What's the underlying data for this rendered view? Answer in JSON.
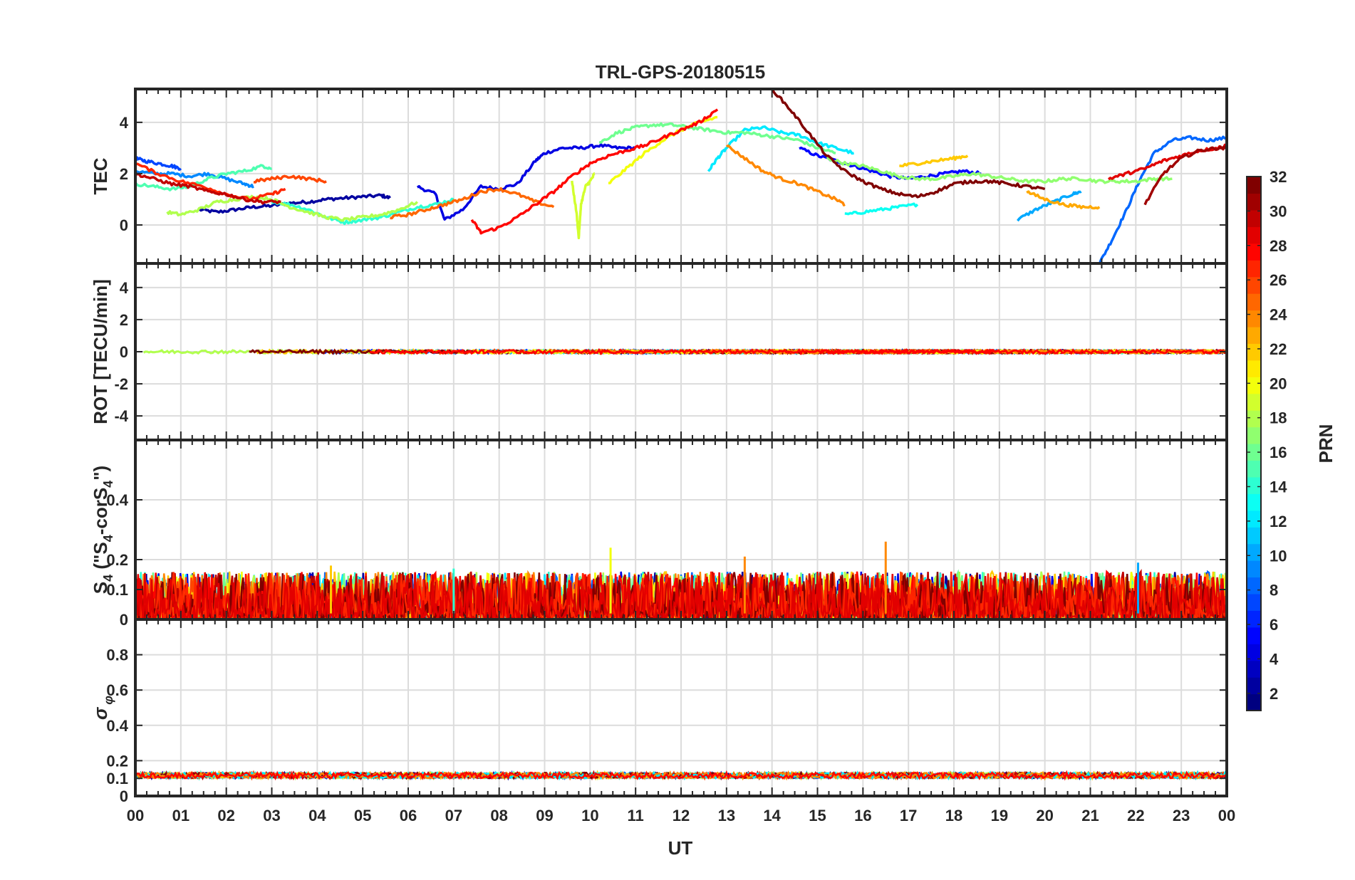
{
  "chart_data": {
    "type": "line",
    "title": "TRL-GPS-20180515",
    "xlabel": "UT",
    "x_tick_labels": [
      "00",
      "01",
      "02",
      "03",
      "04",
      "05",
      "06",
      "07",
      "08",
      "09",
      "10",
      "11",
      "12",
      "13",
      "14",
      "15",
      "16",
      "17",
      "18",
      "19",
      "20",
      "21",
      "22",
      "23",
      "00"
    ],
    "xlim": [
      0,
      24
    ],
    "grid": true,
    "colorbar": {
      "label": "PRN",
      "range": [
        1,
        32
      ],
      "tick_values": [
        2,
        4,
        6,
        8,
        10,
        12,
        14,
        16,
        18,
        20,
        22,
        24,
        26,
        28,
        30,
        32
      ],
      "tick_labels": [
        "2",
        "4",
        "6",
        "8",
        "10",
        "12",
        "14",
        "16",
        "18",
        "20",
        "22",
        "24",
        "26",
        "28",
        "30",
        "32"
      ],
      "colormap": "jet"
    },
    "panels": [
      {
        "id": "tec",
        "ylabel": "TEC",
        "ylim": [
          -1.5,
          5.3
        ],
        "y_ticks": [
          0,
          2,
          4
        ],
        "y_tick_labels": [
          "0",
          "2",
          "4"
        ],
        "series": [
          {
            "prn": 2,
            "x": [
              1.4,
              1.8,
              2.2,
              2.6,
              3.0,
              3.4,
              3.8,
              4.2,
              4.6,
              5.0,
              5.4,
              5.6
            ],
            "y": [
              0.6,
              0.5,
              0.6,
              0.7,
              0.75,
              0.85,
              0.9,
              1.0,
              1.05,
              1.1,
              1.15,
              1.05
            ]
          },
          {
            "prn": 4,
            "x": [
              6.2,
              6.6,
              6.8,
              7.2,
              7.6,
              8.0,
              8.4,
              8.8,
              9.0,
              9.4,
              9.8,
              10.2,
              10.6,
              11.0
            ],
            "y": [
              1.5,
              1.2,
              0.2,
              0.6,
              1.5,
              1.4,
              1.6,
              2.5,
              2.8,
              3.0,
              3.0,
              3.1,
              3.0,
              3.0
            ]
          },
          {
            "prn": 5,
            "x": [
              14.6,
              15.0,
              15.4,
              15.8,
              16.2,
              16.6,
              17.0,
              17.4,
              17.8,
              18.2,
              18.6
            ],
            "y": [
              3.0,
              2.7,
              2.5,
              2.3,
              2.1,
              1.9,
              1.8,
              1.9,
              2.0,
              2.1,
              2.0
            ]
          },
          {
            "prn": 7,
            "x": [
              0.0,
              0.2,
              0.5,
              0.8,
              1.0
            ],
            "y": [
              2.6,
              2.5,
              2.4,
              2.3,
              2.2
            ]
          },
          {
            "prn": 8,
            "x": [
              21.2,
              21.5,
              21.8,
              22.1,
              22.4,
              22.8,
              23.2,
              23.6,
              24.0
            ],
            "y": [
              -1.5,
              -0.5,
              0.6,
              1.8,
              2.8,
              3.3,
              3.4,
              3.3,
              3.4
            ]
          },
          {
            "prn": 9,
            "x": [
              0.0,
              0.4,
              0.8,
              1.2,
              1.6,
              2.0,
              2.4,
              2.6
            ],
            "y": [
              2.1,
              2.0,
              2.0,
              1.9,
              2.0,
              1.8,
              1.6,
              1.5
            ]
          },
          {
            "prn": 10,
            "x": [
              19.4,
              19.8,
              20.2,
              20.6,
              20.8
            ],
            "y": [
              0.2,
              0.6,
              0.9,
              1.2,
              1.3
            ]
          },
          {
            "prn": 12,
            "x": [
              12.6,
              12.8,
              13.0,
              13.4,
              13.8,
              14.2,
              14.6,
              15.0,
              15.4,
              15.8
            ],
            "y": [
              2.1,
              2.6,
              3.0,
              3.7,
              3.8,
              3.6,
              3.5,
              3.2,
              3.0,
              2.8
            ]
          },
          {
            "prn": 13,
            "x": [
              15.6,
              16.0,
              16.4,
              16.8,
              17.2
            ],
            "y": [
              0.4,
              0.5,
              0.6,
              0.7,
              0.8
            ]
          },
          {
            "prn": 14,
            "x": [
              3.0,
              3.4,
              3.8,
              4.2,
              4.6,
              5.0,
              5.4,
              5.8,
              6.2,
              6.6,
              7.0
            ],
            "y": [
              0.9,
              0.8,
              0.6,
              0.3,
              0.1,
              0.2,
              0.3,
              0.5,
              0.7,
              0.8,
              1.0
            ]
          },
          {
            "prn": 15,
            "x": [
              0.0,
              0.4,
              0.8,
              1.2,
              1.6,
              2.0,
              2.4,
              2.8,
              3.0
            ],
            "y": [
              1.6,
              1.5,
              1.4,
              1.5,
              1.8,
              2.0,
              2.1,
              2.3,
              2.2
            ]
          },
          {
            "prn": 16,
            "x": [
              10.2,
              10.6,
              11.0,
              11.4,
              11.8,
              12.2,
              12.6,
              13.0,
              13.4,
              13.8,
              14.2,
              14.6,
              15.0,
              15.4
            ],
            "y": [
              3.2,
              3.6,
              3.8,
              3.9,
              3.9,
              3.8,
              3.7,
              3.6,
              3.6,
              3.5,
              3.4,
              3.3,
              3.0,
              2.8
            ]
          },
          {
            "prn": 17,
            "x": [
              15.2,
              15.6,
              16.0,
              16.4,
              16.8,
              17.2,
              17.6,
              18.0,
              18.4,
              18.8,
              19.2,
              19.6,
              20.0,
              20.4,
              20.8,
              21.2,
              21.6,
              22.0,
              22.4,
              22.8
            ],
            "y": [
              2.6,
              2.4,
              2.3,
              2.1,
              1.9,
              1.8,
              1.8,
              1.9,
              2.0,
              1.9,
              1.8,
              1.7,
              1.7,
              1.8,
              1.8,
              1.7,
              1.7,
              1.7,
              1.8,
              1.8
            ]
          },
          {
            "prn": 18,
            "x": [
              0.7,
              1.0,
              1.4,
              1.8,
              2.2,
              2.6,
              3.0,
              3.4,
              3.8,
              4.2,
              4.6,
              5.0,
              5.4,
              5.8,
              6.2
            ],
            "y": [
              0.5,
              0.4,
              0.6,
              0.9,
              1.0,
              1.1,
              1.0,
              0.7,
              0.5,
              0.3,
              0.2,
              0.3,
              0.4,
              0.6,
              0.9
            ]
          },
          {
            "prn": 19,
            "x": [
              9.6,
              9.7,
              9.75,
              9.8,
              9.9,
              10.0,
              10.1
            ],
            "y": [
              1.7,
              0.5,
              -0.5,
              0.8,
              1.5,
              1.7,
              2.0
            ]
          },
          {
            "prn": 20,
            "x": [
              10.4,
              10.8,
              11.2,
              11.6,
              12.0,
              12.4,
              12.8
            ],
            "y": [
              1.6,
              2.2,
              2.8,
              3.3,
              3.7,
              4.0,
              4.2
            ]
          },
          {
            "prn": 22,
            "x": [
              16.8,
              17.2,
              17.6,
              18.0,
              18.3
            ],
            "y": [
              2.3,
              2.4,
              2.5,
              2.6,
              2.7
            ]
          },
          {
            "prn": 23,
            "x": [
              19.6,
              20.0,
              20.4,
              20.8,
              21.2
            ],
            "y": [
              1.3,
              1.0,
              0.8,
              0.7,
              0.7
            ]
          },
          {
            "prn": 24,
            "x": [
              13.0,
              13.4,
              13.8,
              14.2,
              14.6,
              15.0,
              15.4,
              15.6
            ],
            "y": [
              3.1,
              2.6,
              2.1,
              1.8,
              1.6,
              1.3,
              1.0,
              0.8
            ]
          },
          {
            "prn": 25,
            "x": [
              5.6,
              6.0,
              6.4,
              6.8,
              7.2,
              7.6,
              8.0,
              8.4,
              8.8,
              9.2
            ],
            "y": [
              0.3,
              0.4,
              0.6,
              0.8,
              1.0,
              1.3,
              1.4,
              1.2,
              0.9,
              0.7
            ]
          },
          {
            "prn": 26,
            "x": [
              2.6,
              3.0,
              3.4,
              3.8,
              4.2
            ],
            "y": [
              1.7,
              1.8,
              1.9,
              1.8,
              1.7
            ]
          },
          {
            "prn": 27,
            "x": [
              0.0,
              0.5,
              1.0,
              1.5,
              2.0,
              2.5,
              3.0,
              3.3
            ],
            "y": [
              2.4,
              2.0,
              1.7,
              1.5,
              1.2,
              1.0,
              1.2,
              1.4
            ]
          },
          {
            "prn": 28,
            "x": [
              7.4,
              7.6,
              8.0,
              8.4,
              8.8,
              9.2,
              9.6,
              10.0,
              10.4,
              10.8,
              11.2,
              11.6,
              12.0,
              12.4,
              12.8
            ],
            "y": [
              0.2,
              -0.3,
              -0.1,
              0.3,
              0.8,
              1.3,
              1.9,
              2.4,
              2.7,
              2.9,
              3.1,
              3.4,
              3.7,
              4.0,
              4.5
            ]
          },
          {
            "prn": 29,
            "x": [
              21.4,
              21.8,
              22.2,
              22.6,
              23.0,
              23.4,
              23.8,
              24.0
            ],
            "y": [
              1.8,
              2.0,
              2.2,
              2.5,
              2.7,
              2.9,
              3.0,
              3.1
            ]
          },
          {
            "prn": 30,
            "x": [
              0.0,
              0.4,
              0.8,
              1.2,
              1.6,
              2.0,
              2.4,
              2.8,
              3.2
            ],
            "y": [
              2.0,
              1.8,
              1.6,
              1.5,
              1.3,
              1.2,
              1.0,
              0.9,
              0.9
            ]
          },
          {
            "prn": 31,
            "x": [
              22.2,
              22.6,
              23.0,
              23.4,
              23.8,
              24.0
            ],
            "y": [
              0.8,
              2.0,
              2.6,
              2.9,
              3.0,
              3.0
            ]
          },
          {
            "prn": 32,
            "x": [
              14.0,
              14.4,
              14.8,
              15.2,
              15.6,
              16.0,
              16.4,
              16.8,
              17.2,
              17.6,
              18.0,
              18.4,
              18.8,
              19.2,
              19.6,
              20.0
            ],
            "y": [
              5.3,
              4.5,
              3.6,
              2.7,
              2.1,
              1.7,
              1.4,
              1.2,
              1.1,
              1.3,
              1.6,
              1.7,
              1.7,
              1.6,
              1.5,
              1.4
            ]
          }
        ]
      },
      {
        "id": "rot",
        "ylabel": "ROT [TECU/min]",
        "ylim": [
          -5.5,
          5.5
        ],
        "y_ticks": [
          -4,
          -2,
          0,
          2,
          4
        ],
        "y_tick_labels": [
          "-4",
          "-2",
          "0",
          "2",
          "4"
        ],
        "note_values": "all PRNs near 0, amplitude about 0.1",
        "series_value": 0,
        "series_amplitude": 0.1
      },
      {
        "id": "s4",
        "ylabel": "S4 (\"S4-corS4\")",
        "ylabel_parts": [
          "S",
          "4",
          " (\"S",
          "4",
          "-corS",
          "4",
          "\")"
        ],
        "ylim": [
          0,
          0.6
        ],
        "y_ticks": [
          0,
          0.1,
          0.2,
          0.4
        ],
        "y_tick_labels": [
          "0",
          "0.1",
          "0.2",
          "0.4"
        ],
        "typical_range": [
          0.0,
          0.16
        ],
        "peaks": [
          {
            "x": 10.45,
            "y": 0.24,
            "prn": 20
          },
          {
            "x": 13.4,
            "y": 0.21,
            "prn": 24
          },
          {
            "x": 16.5,
            "y": 0.26,
            "prn": 24
          },
          {
            "x": 4.3,
            "y": 0.18,
            "prn": 22
          },
          {
            "x": 22.05,
            "y": 0.19,
            "prn": 10
          },
          {
            "x": 7.0,
            "y": 0.17,
            "prn": 14
          }
        ]
      },
      {
        "id": "sigma",
        "ylabel": "σφ",
        "ylabel_parts": [
          "σ",
          "φ"
        ],
        "ylim": [
          0,
          1.0
        ],
        "y_ticks": [
          0,
          0.1,
          0.2,
          0.4,
          0.6,
          0.8
        ],
        "y_tick_labels": [
          "0",
          "0.1",
          "0.2",
          "0.4",
          "0.6",
          "0.8"
        ],
        "baseline": 0.11,
        "typical_range": [
          0.1,
          0.14
        ]
      }
    ]
  }
}
